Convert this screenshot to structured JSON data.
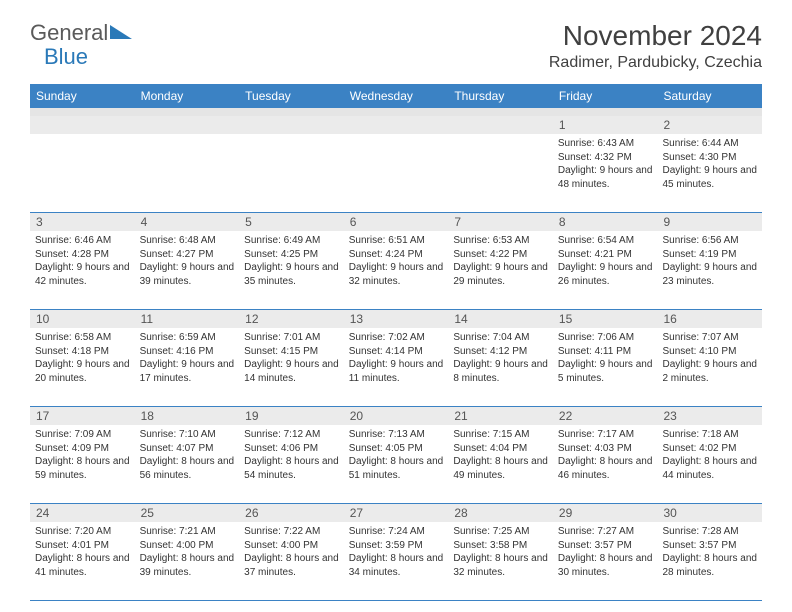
{
  "logo": {
    "text1": "General",
    "text2": "Blue"
  },
  "title": "November 2024",
  "location": "Radimer, Pardubicky, Czechia",
  "colors": {
    "header_bg": "#3b82c4",
    "header_text": "#ffffff",
    "daynum_bg": "#ebebeb",
    "week_border": "#3b82c4",
    "title_color": "#404040",
    "body_text": "#333333"
  },
  "day_names": [
    "Sunday",
    "Monday",
    "Tuesday",
    "Wednesday",
    "Thursday",
    "Friday",
    "Saturday"
  ],
  "weeks": [
    [
      null,
      null,
      null,
      null,
      null,
      {
        "n": "1",
        "sunrise": "6:43 AM",
        "sunset": "4:32 PM",
        "dl_h": "9",
        "dl_m": "48"
      },
      {
        "n": "2",
        "sunrise": "6:44 AM",
        "sunset": "4:30 PM",
        "dl_h": "9",
        "dl_m": "45"
      }
    ],
    [
      {
        "n": "3",
        "sunrise": "6:46 AM",
        "sunset": "4:28 PM",
        "dl_h": "9",
        "dl_m": "42"
      },
      {
        "n": "4",
        "sunrise": "6:48 AM",
        "sunset": "4:27 PM",
        "dl_h": "9",
        "dl_m": "39"
      },
      {
        "n": "5",
        "sunrise": "6:49 AM",
        "sunset": "4:25 PM",
        "dl_h": "9",
        "dl_m": "35"
      },
      {
        "n": "6",
        "sunrise": "6:51 AM",
        "sunset": "4:24 PM",
        "dl_h": "9",
        "dl_m": "32"
      },
      {
        "n": "7",
        "sunrise": "6:53 AM",
        "sunset": "4:22 PM",
        "dl_h": "9",
        "dl_m": "29"
      },
      {
        "n": "8",
        "sunrise": "6:54 AM",
        "sunset": "4:21 PM",
        "dl_h": "9",
        "dl_m": "26"
      },
      {
        "n": "9",
        "sunrise": "6:56 AM",
        "sunset": "4:19 PM",
        "dl_h": "9",
        "dl_m": "23"
      }
    ],
    [
      {
        "n": "10",
        "sunrise": "6:58 AM",
        "sunset": "4:18 PM",
        "dl_h": "9",
        "dl_m": "20"
      },
      {
        "n": "11",
        "sunrise": "6:59 AM",
        "sunset": "4:16 PM",
        "dl_h": "9",
        "dl_m": "17"
      },
      {
        "n": "12",
        "sunrise": "7:01 AM",
        "sunset": "4:15 PM",
        "dl_h": "9",
        "dl_m": "14"
      },
      {
        "n": "13",
        "sunrise": "7:02 AM",
        "sunset": "4:14 PM",
        "dl_h": "9",
        "dl_m": "11"
      },
      {
        "n": "14",
        "sunrise": "7:04 AM",
        "sunset": "4:12 PM",
        "dl_h": "9",
        "dl_m": "8"
      },
      {
        "n": "15",
        "sunrise": "7:06 AM",
        "sunset": "4:11 PM",
        "dl_h": "9",
        "dl_m": "5"
      },
      {
        "n": "16",
        "sunrise": "7:07 AM",
        "sunset": "4:10 PM",
        "dl_h": "9",
        "dl_m": "2"
      }
    ],
    [
      {
        "n": "17",
        "sunrise": "7:09 AM",
        "sunset": "4:09 PM",
        "dl_h": "8",
        "dl_m": "59"
      },
      {
        "n": "18",
        "sunrise": "7:10 AM",
        "sunset": "4:07 PM",
        "dl_h": "8",
        "dl_m": "56"
      },
      {
        "n": "19",
        "sunrise": "7:12 AM",
        "sunset": "4:06 PM",
        "dl_h": "8",
        "dl_m": "54"
      },
      {
        "n": "20",
        "sunrise": "7:13 AM",
        "sunset": "4:05 PM",
        "dl_h": "8",
        "dl_m": "51"
      },
      {
        "n": "21",
        "sunrise": "7:15 AM",
        "sunset": "4:04 PM",
        "dl_h": "8",
        "dl_m": "49"
      },
      {
        "n": "22",
        "sunrise": "7:17 AM",
        "sunset": "4:03 PM",
        "dl_h": "8",
        "dl_m": "46"
      },
      {
        "n": "23",
        "sunrise": "7:18 AM",
        "sunset": "4:02 PM",
        "dl_h": "8",
        "dl_m": "44"
      }
    ],
    [
      {
        "n": "24",
        "sunrise": "7:20 AM",
        "sunset": "4:01 PM",
        "dl_h": "8",
        "dl_m": "41"
      },
      {
        "n": "25",
        "sunrise": "7:21 AM",
        "sunset": "4:00 PM",
        "dl_h": "8",
        "dl_m": "39"
      },
      {
        "n": "26",
        "sunrise": "7:22 AM",
        "sunset": "4:00 PM",
        "dl_h": "8",
        "dl_m": "37"
      },
      {
        "n": "27",
        "sunrise": "7:24 AM",
        "sunset": "3:59 PM",
        "dl_h": "8",
        "dl_m": "34"
      },
      {
        "n": "28",
        "sunrise": "7:25 AM",
        "sunset": "3:58 PM",
        "dl_h": "8",
        "dl_m": "32"
      },
      {
        "n": "29",
        "sunrise": "7:27 AM",
        "sunset": "3:57 PM",
        "dl_h": "8",
        "dl_m": "30"
      },
      {
        "n": "30",
        "sunrise": "7:28 AM",
        "sunset": "3:57 PM",
        "dl_h": "8",
        "dl_m": "28"
      }
    ]
  ],
  "labels": {
    "sunrise": "Sunrise:",
    "sunset": "Sunset:",
    "daylight": "Daylight:",
    "hours": "hours",
    "and": "and",
    "minutes": "minutes."
  }
}
